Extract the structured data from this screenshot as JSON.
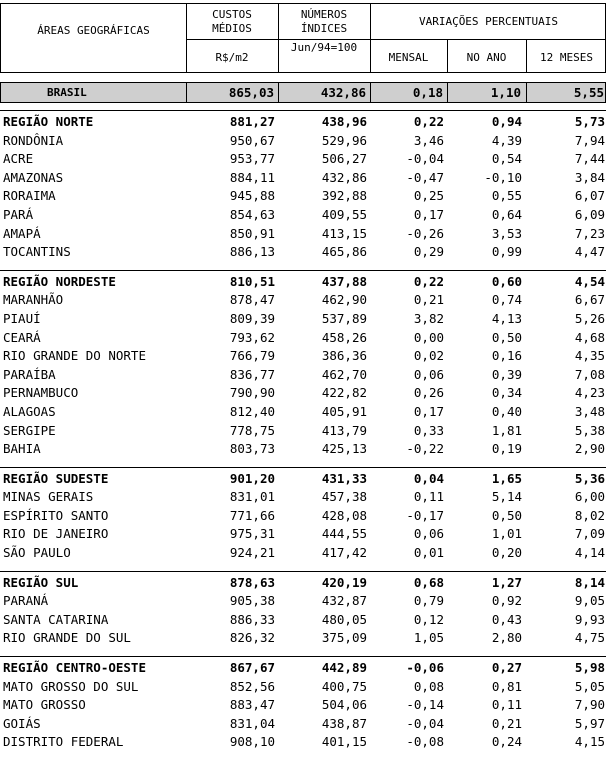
{
  "header": {
    "col_area": "ÁREAS GEOGRÁFICAS",
    "col_custos_1": "CUSTOS",
    "col_custos_2": "MÉDIOS",
    "col_custos_unit": "R$/m2",
    "col_indices_1": "NÚMEROS",
    "col_indices_2": "ÍNDICES",
    "col_indices_base": "Jun/94=100",
    "col_variacoes": "VARIAÇÕES PERCENTUAIS",
    "col_mensal": "MENSAL",
    "col_no_ano": "NO ANO",
    "col_12_meses": "12 MESES"
  },
  "brasil": {
    "name": "BRASIL",
    "custo": "865,03",
    "indice": "432,86",
    "mensal": "0,18",
    "ano": "1,10",
    "meses12": "5,55"
  },
  "regions": [
    {
      "name": "REGIÃO NORTE",
      "custo": "881,27",
      "indice": "438,96",
      "mensal": "0,22",
      "ano": "0,94",
      "meses12": "5,73",
      "states": [
        {
          "name": "RONDÔNIA",
          "custo": "950,67",
          "indice": "529,96",
          "mensal": "3,46",
          "ano": "4,39",
          "meses12": "7,94"
        },
        {
          "name": "ACRE",
          "custo": "953,77",
          "indice": "506,27",
          "mensal": "-0,04",
          "ano": "0,54",
          "meses12": "7,44"
        },
        {
          "name": "AMAZONAS",
          "custo": "884,11",
          "indice": "432,86",
          "mensal": "-0,47",
          "ano": "-0,10",
          "meses12": "3,84"
        },
        {
          "name": "RORAIMA",
          "custo": "945,88",
          "indice": "392,88",
          "mensal": "0,25",
          "ano": "0,55",
          "meses12": "6,07"
        },
        {
          "name": "PARÁ",
          "custo": "854,63",
          "indice": "409,55",
          "mensal": "0,17",
          "ano": "0,64",
          "meses12": "6,09"
        },
        {
          "name": "AMAPÁ",
          "custo": "850,91",
          "indice": "413,15",
          "mensal": "-0,26",
          "ano": "3,53",
          "meses12": "7,23"
        },
        {
          "name": "TOCANTINS",
          "custo": "886,13",
          "indice": "465,86",
          "mensal": "0,29",
          "ano": "0,99",
          "meses12": "4,47"
        }
      ]
    },
    {
      "name": "REGIÃO NORDESTE",
      "custo": "810,51",
      "indice": "437,88",
      "mensal": "0,22",
      "ano": "0,60",
      "meses12": "4,54",
      "states": [
        {
          "name": "MARANHÃO",
          "custo": "878,47",
          "indice": "462,90",
          "mensal": "0,21",
          "ano": "0,74",
          "meses12": "6,67"
        },
        {
          "name": "PIAUÍ",
          "custo": "809,39",
          "indice": "537,89",
          "mensal": "3,82",
          "ano": "4,13",
          "meses12": "5,26"
        },
        {
          "name": "CEARÁ",
          "custo": "793,62",
          "indice": "458,26",
          "mensal": "0,00",
          "ano": "0,50",
          "meses12": "4,68"
        },
        {
          "name": "RIO GRANDE DO NORTE",
          "custo": "766,79",
          "indice": "386,36",
          "mensal": "0,02",
          "ano": "0,16",
          "meses12": "4,35"
        },
        {
          "name": "PARAÍBA",
          "custo": "836,77",
          "indice": "462,70",
          "mensal": "0,06",
          "ano": "0,39",
          "meses12": "7,08"
        },
        {
          "name": "PERNAMBUCO",
          "custo": "790,90",
          "indice": "422,82",
          "mensal": "0,26",
          "ano": "0,34",
          "meses12": "4,23"
        },
        {
          "name": "ALAGOAS",
          "custo": "812,40",
          "indice": "405,91",
          "mensal": "0,17",
          "ano": "0,40",
          "meses12": "3,48"
        },
        {
          "name": "SERGIPE",
          "custo": "778,75",
          "indice": "413,79",
          "mensal": "0,33",
          "ano": "1,81",
          "meses12": "5,38"
        },
        {
          "name": "BAHIA",
          "custo": "803,73",
          "indice": "425,13",
          "mensal": "-0,22",
          "ano": "0,19",
          "meses12": "2,90"
        }
      ]
    },
    {
      "name": "REGIÃO SUDESTE",
      "custo": "901,20",
      "indice": "431,33",
      "mensal": "0,04",
      "ano": "1,65",
      "meses12": "5,36",
      "states": [
        {
          "name": "MINAS GERAIS",
          "custo": "831,01",
          "indice": "457,38",
          "mensal": "0,11",
          "ano": "5,14",
          "meses12": "6,00"
        },
        {
          "name": "ESPÍRITO SANTO",
          "custo": "771,66",
          "indice": "428,08",
          "mensal": "-0,17",
          "ano": "0,50",
          "meses12": "8,02"
        },
        {
          "name": "RIO DE JANEIRO",
          "custo": "975,31",
          "indice": "444,55",
          "mensal": "0,06",
          "ano": "1,01",
          "meses12": "7,09"
        },
        {
          "name": "SÃO PAULO",
          "custo": "924,21",
          "indice": "417,42",
          "mensal": "0,01",
          "ano": "0,20",
          "meses12": "4,14"
        }
      ]
    },
    {
      "name": "REGIÃO SUL",
      "custo": "878,63",
      "indice": "420,19",
      "mensal": "0,68",
      "ano": "1,27",
      "meses12": "8,14",
      "states": [
        {
          "name": "PARANÁ",
          "custo": "905,38",
          "indice": "432,87",
          "mensal": "0,79",
          "ano": "0,92",
          "meses12": "9,05"
        },
        {
          "name": "SANTA CATARINA",
          "custo": "886,33",
          "indice": "480,05",
          "mensal": "0,12",
          "ano": "0,43",
          "meses12": "9,93"
        },
        {
          "name": "RIO GRANDE DO SUL",
          "custo": "826,32",
          "indice": "375,09",
          "mensal": "1,05",
          "ano": "2,80",
          "meses12": "4,75"
        }
      ]
    },
    {
      "name": "REGIÃO CENTRO-OESTE",
      "custo": "867,67",
      "indice": "442,89",
      "mensal": "-0,06",
      "ano": "0,27",
      "meses12": "5,98",
      "states": [
        {
          "name": "MATO GROSSO DO SUL",
          "custo": "852,56",
          "indice": "400,75",
          "mensal": "0,08",
          "ano": "0,81",
          "meses12": "5,05"
        },
        {
          "name": "MATO GROSSO",
          "custo": "883,47",
          "indice": "504,06",
          "mensal": "-0,14",
          "ano": "0,11",
          "meses12": "7,90"
        },
        {
          "name": "GOIÁS",
          "custo": "831,04",
          "indice": "438,87",
          "mensal": "-0,04",
          "ano": "0,21",
          "meses12": "5,97"
        },
        {
          "name": "DISTRITO FEDERAL",
          "custo": "908,10",
          "indice": "401,15",
          "mensal": "-0,08",
          "ano": "0,24",
          "meses12": "4,15"
        }
      ]
    }
  ]
}
